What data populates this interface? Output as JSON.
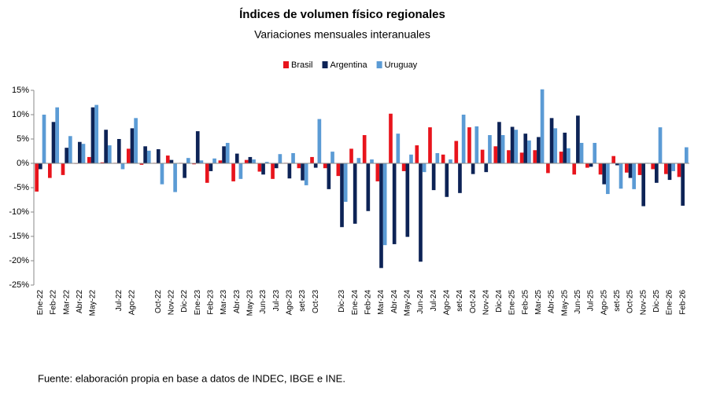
{
  "chart_data": {
    "type": "bar",
    "title": "Índices de volumen físico regionales",
    "subtitle": "Variaciones mensuales interanuales",
    "source": "Fuente: elaboración propia en base a datos de INDEC, IBGE e INE.",
    "categories": [
      "Ene-22",
      "Feb-22",
      "Mar-22",
      "Abr-22",
      "May-22",
      null,
      "Jul-22",
      "Ago-22",
      null,
      "Oct-22",
      "Nov-22",
      "Dic-22",
      "Ene-23",
      "Feb-23",
      "Mar-23",
      "Abr-23",
      "May-23",
      "Jun-23",
      "Jul-23",
      "Ago-23",
      "set-23",
      "Oct-23",
      null,
      "Dic-23",
      "Ene-24",
      "Feb-24",
      "Mar-24",
      "Abr-24",
      "May-24",
      "Jun-24",
      "Jul-24",
      "Ago-24",
      "set-24",
      "Oct-24",
      "Nov-24",
      "Dic-24",
      "Ene-25",
      "Feb-25",
      "Mar-25",
      "Abr-25",
      "May-25",
      "Jun-25",
      "Jul-25",
      "Ago-25",
      "set-25",
      "Oct-25",
      "Nov-25",
      "Dic-25",
      "Ene-26",
      "Feb-26"
    ],
    "series": [
      {
        "name": "Brasil",
        "color": "#e8141c",
        "values": [
          -5.8,
          -3.0,
          -2.4,
          -0.1,
          1.3,
          0.2,
          0.1,
          3.0,
          -0.3,
          0.1,
          1.6,
          0.1,
          -0.2,
          -4.0,
          0.6,
          -3.7,
          0.7,
          -1.7,
          -3.2,
          0.1,
          -1.0,
          1.3,
          -1.0,
          -2.6,
          3.0,
          5.8,
          -3.7,
          10.2,
          -1.6,
          3.7,
          7.4,
          1.8,
          4.6,
          7.4,
          2.8,
          3.5,
          2.7,
          2.2,
          2.7,
          -2.0,
          2.4,
          -2.3,
          -0.9,
          -2.3,
          1.5,
          -1.9,
          -2.4,
          -1.2,
          -2.2,
          -2.8
        ]
      },
      {
        "name": "Argentina",
        "color": "#0d2356",
        "values": [
          -1.2,
          8.5,
          3.2,
          4.4,
          11.5,
          6.9,
          5.0,
          7.2,
          3.5,
          2.9,
          0.7,
          -3.0,
          6.6,
          -1.6,
          3.5,
          2.0,
          1.3,
          -2.3,
          -1.0,
          -3.1,
          -3.5,
          -0.9,
          -5.3,
          -13.1,
          -12.4,
          -9.8,
          -21.5,
          -16.6,
          -15.1,
          -20.2,
          -5.5,
          -6.9,
          -6.1,
          -2.2,
          -1.8,
          8.5,
          7.5,
          6.1,
          5.4,
          9.3,
          6.3,
          9.8,
          -0.7,
          -4.3,
          -0.4,
          -3.0,
          -8.8,
          -4.0,
          -3.4,
          -8.7
        ]
      },
      {
        "name": "Uruguay",
        "color": "#5b9bd5",
        "values": [
          10.0,
          11.5,
          5.6,
          4.0,
          12.0,
          3.7,
          -1.2,
          9.3,
          2.6,
          -4.3,
          -5.9,
          1.1,
          0.6,
          1.0,
          4.2,
          -3.2,
          0.8,
          0.3,
          1.9,
          2.1,
          -4.5,
          9.1,
          2.4,
          -7.9,
          1.1,
          0.8,
          -16.8,
          6.1,
          1.8,
          -1.8,
          2.1,
          0.8,
          10.0,
          7.6,
          5.8,
          5.8,
          6.9,
          4.7,
          15.2,
          7.2,
          3.1,
          4.2,
          4.2,
          -6.3,
          -5.2,
          -5.3,
          0.1,
          7.4,
          -1.6,
          3.3
        ]
      }
    ],
    "ylim": [
      -25,
      15
    ],
    "yticks": [
      {
        "value": -25,
        "label": "-25%"
      },
      {
        "value": -20,
        "label": "-20%"
      },
      {
        "value": -15,
        "label": "-15%"
      },
      {
        "value": -10,
        "label": "-10%"
      },
      {
        "value": -5,
        "label": "-5%"
      },
      {
        "value": 0,
        "label": "0%"
      },
      {
        "value": 5,
        "label": "5%"
      },
      {
        "value": 10,
        "label": "10%"
      },
      {
        "value": 15,
        "label": "15%"
      }
    ],
    "grid": false,
    "legend": "top"
  }
}
